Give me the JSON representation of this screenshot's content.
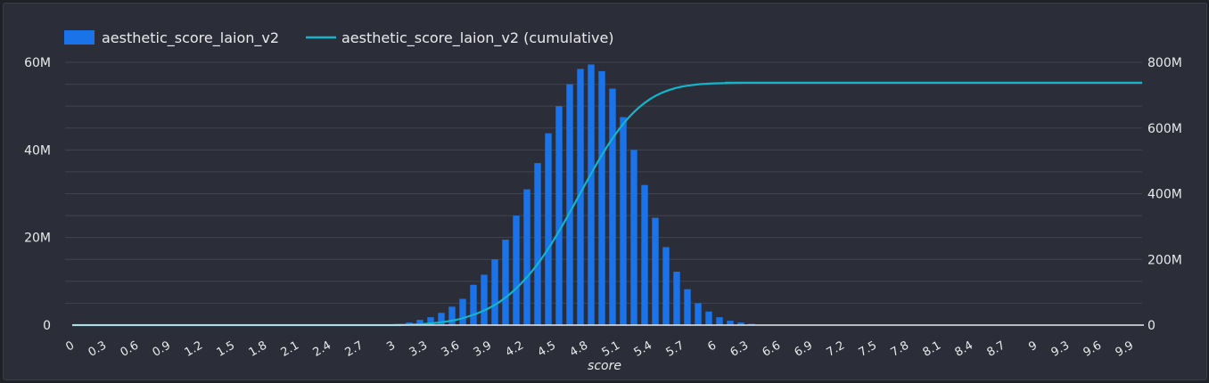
{
  "colors": {
    "bar": "#1a73e8",
    "line": "#12b5cb",
    "background": "#2b2e38",
    "grid": "#41444f",
    "text": "#e8eaed"
  },
  "chart_data": {
    "type": "bar",
    "x_label": "score",
    "x_ticks": [
      "0",
      "0.3",
      "0.6",
      "0.9",
      "1.2",
      "1.5",
      "1.8",
      "2.1",
      "2.4",
      "2.7",
      "3",
      "3.3",
      "3.6",
      "3.9",
      "4.2",
      "4.5",
      "4.8",
      "5.1",
      "5.4",
      "5.7",
      "6",
      "6.3",
      "6.6",
      "6.9",
      "7.2",
      "7.5",
      "7.8",
      "8.1",
      "8.4",
      "8.7",
      "9",
      "9.3",
      "9.6",
      "9.9"
    ],
    "x_range": [
      0,
      10
    ],
    "left_axis": {
      "range": [
        0,
        60000000
      ],
      "ticks": [
        "0",
        "20M",
        "40M",
        "60M"
      ]
    },
    "right_axis": {
      "range": [
        0,
        800000000
      ],
      "ticks": [
        "0",
        "200M",
        "400M",
        "600M",
        "800M"
      ]
    },
    "legend": {
      "placement": "top-left",
      "entries": [
        "aesthetic_score_laion_v2",
        "aesthetic_score_laion_v2 (cumulative)"
      ]
    },
    "series": [
      {
        "name": "aesthetic_score_laion_v2",
        "type": "bar",
        "axis": "left",
        "bin_width": 0.1,
        "x": [
          3.0,
          3.1,
          3.2,
          3.3,
          3.4,
          3.5,
          3.6,
          3.7,
          3.8,
          3.9,
          4.0,
          4.1,
          4.2,
          4.3,
          4.4,
          4.5,
          4.6,
          4.7,
          4.8,
          4.9,
          5.0,
          5.1,
          5.2,
          5.3,
          5.4,
          5.5,
          5.6,
          5.7,
          5.8,
          5.9,
          6.0,
          6.1,
          6.2,
          6.3
        ],
        "values": [
          300000,
          600000,
          1200000,
          1800000,
          2800000,
          4200000,
          6000000,
          9200000,
          11500000,
          15000000,
          19500000,
          25000000,
          31000000,
          37000000,
          43800000,
          50000000,
          55000000,
          58500000,
          59500000,
          58000000,
          54000000,
          47500000,
          40000000,
          32000000,
          24500000,
          17800000,
          12200000,
          8200000,
          5000000,
          3100000,
          1800000,
          1000000,
          600000,
          300000
        ]
      },
      {
        "name": "aesthetic_score_laion_v2 (cumulative)",
        "type": "line",
        "axis": "right",
        "x": [
          0,
          2.8,
          3.0,
          3.1,
          3.2,
          3.3,
          3.4,
          3.5,
          3.6,
          3.7,
          3.8,
          3.9,
          4.0,
          4.1,
          4.2,
          4.3,
          4.4,
          4.5,
          4.6,
          4.7,
          4.8,
          4.9,
          5.0,
          5.1,
          5.2,
          5.3,
          5.4,
          5.5,
          5.6,
          5.7,
          5.8,
          5.9,
          6.0,
          6.1,
          6.2,
          6.3,
          6.4,
          10
        ],
        "values": [
          0,
          0,
          300000,
          900000,
          2100000,
          3900000,
          6700000,
          10900000,
          16900000,
          26100000,
          37600000,
          52600000,
          72100000,
          97100000,
          128100000,
          165100000,
          208900000,
          258900000,
          313900000,
          372400000,
          431900000,
          489900000,
          543900000,
          591400000,
          631400000,
          663400000,
          687900000,
          705700000,
          717900000,
          726100000,
          731100000,
          734200000,
          736000000,
          737000000,
          737600000,
          737900000,
          738000000,
          738000000
        ]
      }
    ]
  }
}
